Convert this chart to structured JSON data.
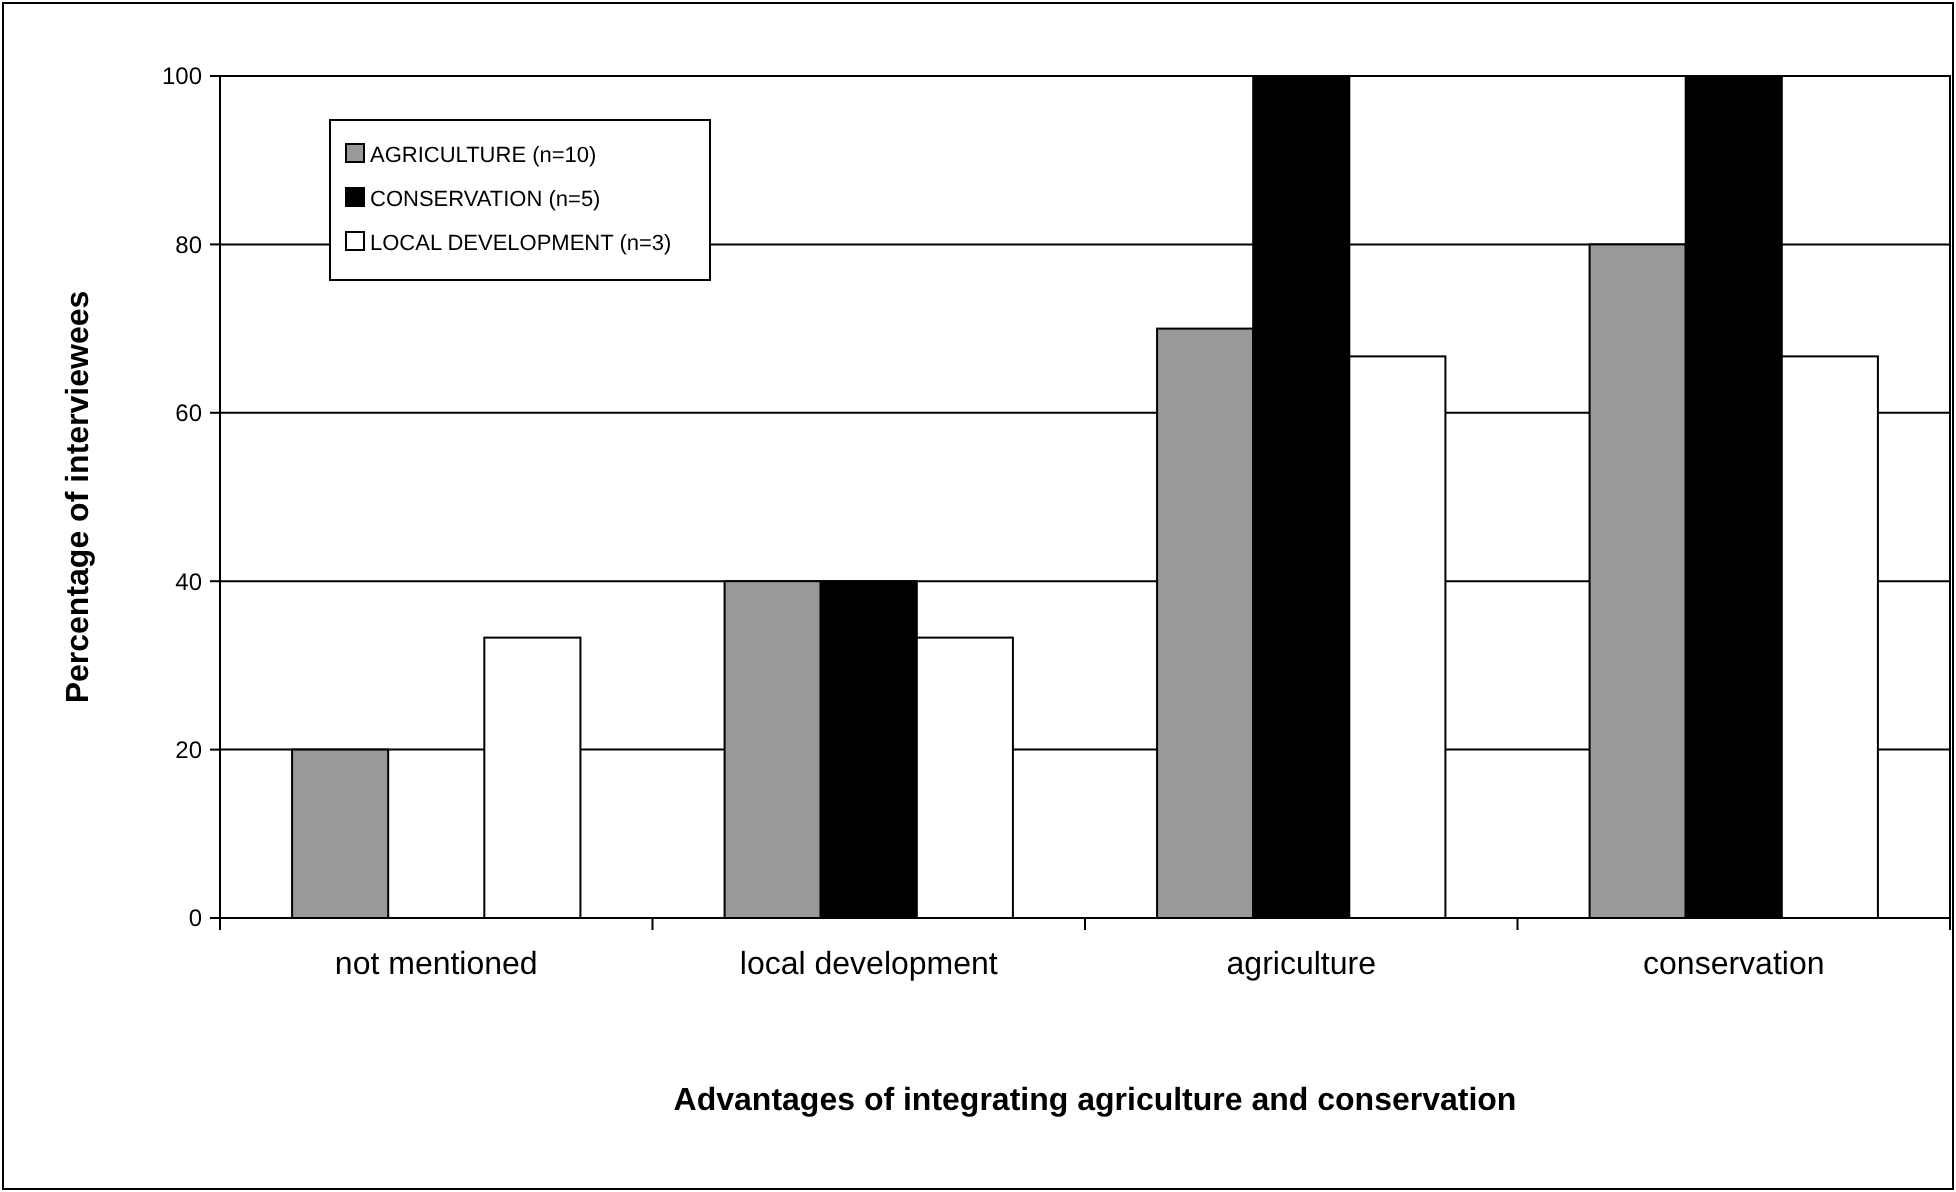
{
  "chart_data": {
    "type": "bar",
    "xlabel": "Advantages of integrating agriculture and conservation",
    "ylabel": "Percentage of interviewees",
    "categories": [
      "not mentioned",
      "local development",
      "agriculture",
      "conservation"
    ],
    "series": [
      {
        "name": "AGRICULTURE (n=10)",
        "color": "#999999",
        "values": [
          20,
          40,
          70,
          80
        ]
      },
      {
        "name": "CONSERVATION (n=5)",
        "color": "#000000",
        "values": [
          0,
          40,
          100,
          100
        ]
      },
      {
        "name": "LOCAL DEVELOPMENT (n=3)",
        "color": "#ffffff",
        "values": [
          33.3,
          33.3,
          66.7,
          66.7
        ]
      }
    ],
    "ylim": [
      0,
      100
    ],
    "yticks": [
      0,
      20,
      40,
      60,
      80,
      100
    ],
    "grid": "y",
    "legend": "top left"
  }
}
